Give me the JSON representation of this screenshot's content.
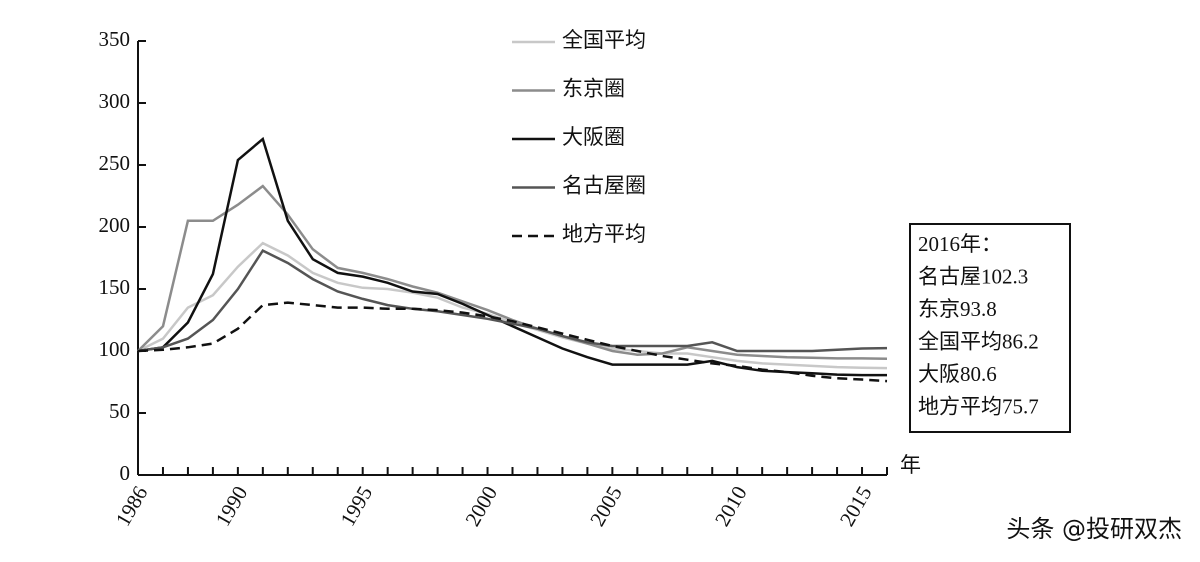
{
  "chart_data": {
    "type": "line",
    "x": [
      1986,
      1987,
      1988,
      1989,
      1990,
      1991,
      1992,
      1993,
      1994,
      1995,
      1996,
      1997,
      1998,
      1999,
      2000,
      2001,
      2002,
      2003,
      2004,
      2005,
      2006,
      2007,
      2008,
      2009,
      2010,
      2011,
      2012,
      2013,
      2014,
      2015,
      2016
    ],
    "xlim": [
      1986,
      2016
    ],
    "xticks": [
      1986,
      1990,
      1995,
      2000,
      2005,
      2010,
      2015
    ],
    "xminorticks": [
      1986,
      1987,
      1988,
      1989,
      1990,
      1991,
      1992,
      1993,
      1994,
      1995,
      1996,
      1997,
      1998,
      1999,
      2000,
      2001,
      2002,
      2003,
      2004,
      2005,
      2006,
      2007,
      2008,
      2009,
      2010,
      2011,
      2012,
      2013,
      2014,
      2015,
      2016
    ],
    "xlabel": "年",
    "ylim": [
      0,
      350
    ],
    "yticks": [
      0,
      50,
      100,
      150,
      200,
      250,
      300,
      350
    ],
    "series": [
      {
        "name": "全国平均",
        "color": "#c8c8c8",
        "style": "solid",
        "values": [
          100,
          110,
          135,
          145,
          168,
          187,
          177,
          163,
          155,
          151,
          150,
          147,
          143,
          135,
          130,
          123,
          117,
          111,
          106,
          102,
          100,
          98,
          98,
          95,
          92,
          90,
          89,
          88,
          87,
          86.5,
          86.2
        ]
      },
      {
        "name": "东京圈",
        "color": "#8c8c8c",
        "style": "solid",
        "values": [
          100,
          120,
          205,
          205,
          218,
          233,
          210,
          182,
          167,
          163,
          158,
          152,
          147,
          140,
          133,
          125,
          118,
          112,
          106,
          100,
          97,
          98,
          103,
          100,
          97,
          96,
          95,
          94.5,
          94,
          94,
          93.8
        ]
      },
      {
        "name": "大阪圈",
        "color": "#111111",
        "style": "solid",
        "values": [
          100,
          103,
          123,
          162,
          254,
          271,
          205,
          174,
          163,
          160,
          155,
          148,
          146,
          138,
          129,
          120,
          111,
          102,
          95,
          89,
          89,
          89,
          89,
          92,
          87,
          84,
          83,
          82,
          81,
          80.6,
          80.6
        ]
      },
      {
        "name": "名古屋圈",
        "color": "#555555",
        "style": "solid",
        "values": [
          100,
          103,
          110,
          125,
          150,
          181,
          171,
          158,
          148,
          142,
          137,
          134,
          132,
          129,
          126,
          122,
          118,
          112,
          107,
          104,
          104,
          104,
          104,
          107,
          100,
          100,
          100,
          100,
          101,
          102,
          102.3
        ]
      },
      {
        "name": "地方平均",
        "color": "#111111",
        "style": "dashed",
        "values": [
          100,
          101,
          103,
          106,
          118,
          137,
          139,
          137,
          135,
          135,
          134,
          134,
          133,
          131,
          128,
          124,
          119,
          114,
          109,
          104,
          100,
          96,
          93,
          90,
          88,
          85,
          83,
          80,
          78,
          77,
          75.7
        ]
      }
    ],
    "annotation": [
      "2016年：",
      "名古屋102.3",
      "东京93.8",
      "全国平均86.2",
      "大阪80.6",
      "地方平均75.7"
    ]
  },
  "watermark": "头条 @投研双杰"
}
